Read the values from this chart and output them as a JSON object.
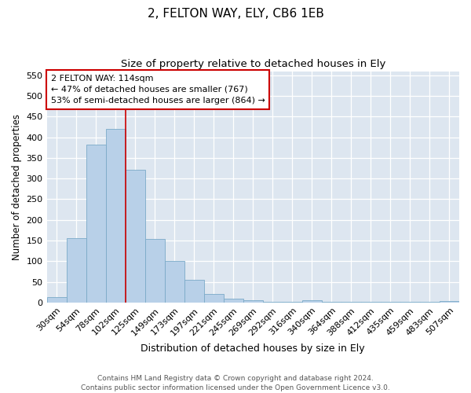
{
  "title": "2, FELTON WAY, ELY, CB6 1EB",
  "subtitle": "Size of property relative to detached houses in Ely",
  "xlabel": "Distribution of detached houses by size in Ely",
  "ylabel": "Number of detached properties",
  "categories": [
    "30sqm",
    "54sqm",
    "78sqm",
    "102sqm",
    "125sqm",
    "149sqm",
    "173sqm",
    "197sqm",
    "221sqm",
    "245sqm",
    "269sqm",
    "292sqm",
    "316sqm",
    "340sqm",
    "364sqm",
    "388sqm",
    "412sqm",
    "435sqm",
    "459sqm",
    "483sqm",
    "507sqm"
  ],
  "values": [
    13,
    155,
    382,
    420,
    321,
    153,
    100,
    55,
    20,
    10,
    5,
    2,
    2,
    5,
    1,
    1,
    1,
    1,
    1,
    1,
    3
  ],
  "bar_color": "#b8d0e8",
  "bar_edge_color": "#7aaac8",
  "vline_color": "#cc0000",
  "vline_x_index": 3.5,
  "annotation_box_text": "2 FELTON WAY: 114sqm\n← 47% of detached houses are smaller (767)\n53% of semi-detached houses are larger (864) →",
  "annotation_box_color": "#cc0000",
  "annotation_box_fill": "#ffffff",
  "ylim": [
    0,
    560
  ],
  "yticks": [
    0,
    50,
    100,
    150,
    200,
    250,
    300,
    350,
    400,
    450,
    500,
    550
  ],
  "bg_color": "#dde6f0",
  "footer": "Contains HM Land Registry data © Crown copyright and database right 2024.\nContains public sector information licensed under the Open Government Licence v3.0.",
  "title_fontsize": 11,
  "subtitle_fontsize": 9.5,
  "xlabel_fontsize": 9,
  "ylabel_fontsize": 8.5,
  "tick_fontsize": 8,
  "footer_fontsize": 6.5,
  "ann_fontsize": 8
}
